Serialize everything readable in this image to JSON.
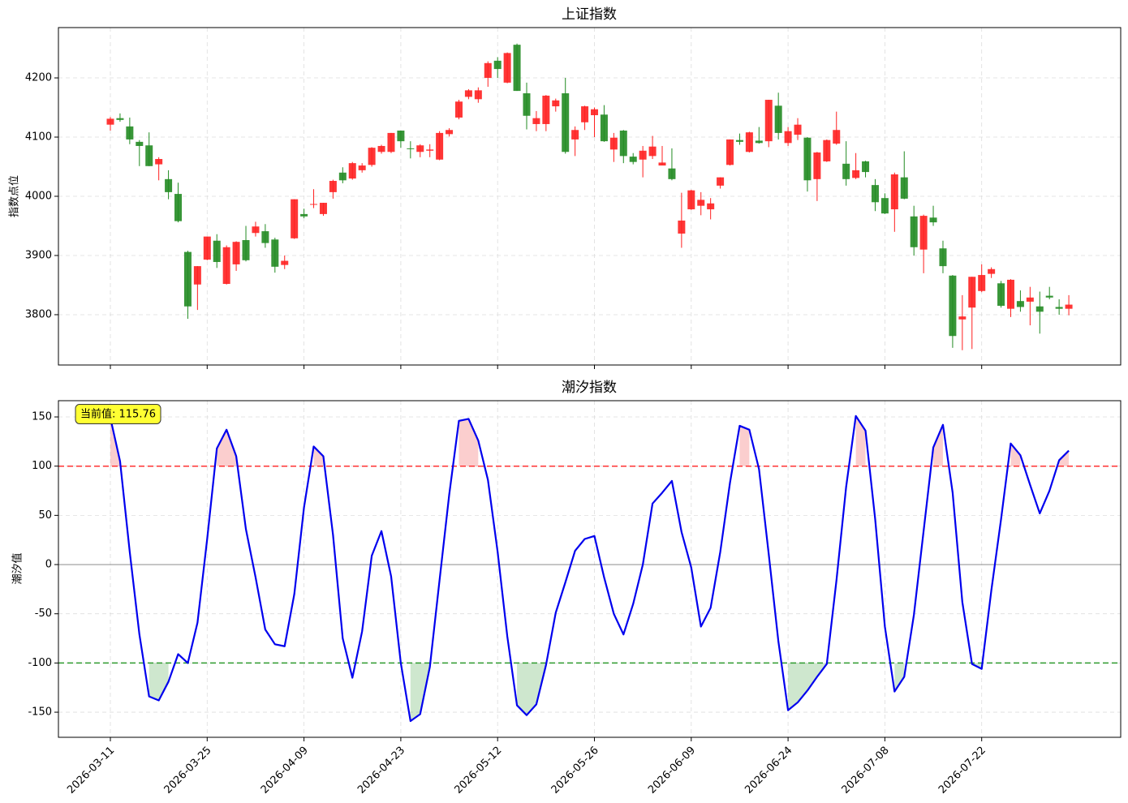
{
  "chart_data": [
    {
      "type": "candlestick",
      "title": "上证指数",
      "y_label": "指数点位",
      "open": [
        4121,
        4132,
        4118,
        4092,
        4086,
        4054,
        4029,
        4004,
        3906,
        3851,
        3893,
        3925,
        3852,
        3885,
        3926,
        3938,
        3941,
        3927,
        3884,
        3929,
        3970,
        3986,
        3970,
        4007,
        4040,
        4030,
        4044,
        4053,
        4075,
        4075,
        4111,
        4081,
        4075,
        4077,
        4062,
        4105,
        4133,
        4168,
        4164,
        4200,
        4229,
        4192,
        4256,
        4174,
        4122,
        4122,
        4152,
        4174,
        4096,
        4125,
        4137,
        4138,
        4079,
        4111,
        4067,
        4062,
        4068,
        4052,
        4047,
        3937,
        3978,
        3984,
        3978,
        4018,
        4053,
        4095,
        4075,
        4094,
        4093,
        4153,
        4090,
        4104,
        4099,
        4029,
        4059,
        4089,
        4055,
        4031,
        4059,
        4019,
        3997,
        3978,
        4032,
        3966,
        3910,
        3964,
        3912,
        3866,
        3792,
        3812,
        3840,
        3869,
        3853,
        3810,
        3823,
        3822,
        3814,
        3832,
        3813,
        3810
      ],
      "high": [
        4134,
        4140,
        4133,
        4095,
        4108,
        4066,
        4044,
        4023,
        3908,
        3882,
        3932,
        3936,
        3917,
        3924,
        3950,
        3957,
        3953,
        3930,
        3900,
        3995,
        3979,
        4012,
        3989,
        4028,
        4049,
        4058,
        4056,
        4083,
        4087,
        4107,
        4111,
        4093,
        4088,
        4088,
        4110,
        4115,
        4163,
        4181,
        4184,
        4228,
        4235,
        4243,
        4258,
        4192,
        4144,
        4171,
        4165,
        4200,
        4118,
        4153,
        4150,
        4154,
        4107,
        4112,
        4073,
        4085,
        4102,
        4085,
        4081,
        4006,
        4011,
        4007,
        3997,
        4032,
        4096,
        4106,
        4109,
        4117,
        4163,
        4175,
        4117,
        4132,
        4100,
        4075,
        4096,
        4143,
        4093,
        4073,
        4060,
        4029,
        4005,
        4040,
        4076,
        3984,
        3969,
        3984,
        3925,
        3867,
        3833,
        3864,
        3885,
        3880,
        3857,
        3860,
        3841,
        3847,
        3839,
        3847,
        3826,
        3833
      ],
      "low": [
        4111,
        4126,
        4088,
        4051,
        4051,
        4027,
        3995,
        3956,
        3793,
        3808,
        3892,
        3879,
        3851,
        3874,
        3890,
        3932,
        3913,
        3871,
        3877,
        3928,
        3963,
        3980,
        3967,
        3996,
        4022,
        4028,
        4040,
        4050,
        4072,
        4073,
        4082,
        4064,
        4066,
        4066,
        4061,
        4101,
        4130,
        4164,
        4158,
        4185,
        4200,
        4191,
        4178,
        4113,
        4110,
        4110,
        4143,
        4072,
        4068,
        4112,
        4100,
        4092,
        4058,
        4056,
        4054,
        4032,
        4063,
        4053,
        4027,
        3913,
        3977,
        3968,
        3961,
        4013,
        4052,
        4087,
        4074,
        4089,
        4083,
        4096,
        4085,
        4095,
        4008,
        3992,
        4058,
        4087,
        4018,
        4029,
        4032,
        3975,
        3970,
        3940,
        3995,
        3900,
        3870,
        3950,
        3870,
        3744,
        3740,
        3742,
        3838,
        3862,
        3812,
        3796,
        3805,
        3782,
        3768,
        3826,
        3800,
        3799
      ],
      "close": [
        4131,
        4129,
        4096,
        4085,
        4051,
        4063,
        4007,
        3958,
        3814,
        3882,
        3932,
        3889,
        3914,
        3923,
        3892,
        3949,
        3921,
        3881,
        3891,
        3995,
        3966,
        3987,
        3989,
        4026,
        4027,
        4056,
        4052,
        4082,
        4085,
        4107,
        4093,
        4080,
        4086,
        4079,
        4107,
        4112,
        4160,
        4179,
        4179,
        4225,
        4215,
        4242,
        4178,
        4136,
        4132,
        4170,
        4162,
        4075,
        4112,
        4152,
        4147,
        4093,
        4099,
        4068,
        4058,
        4077,
        4084,
        4057,
        4029,
        3959,
        4010,
        3994,
        3988,
        4032,
        4096,
        4092,
        4108,
        4090,
        4163,
        4107,
        4110,
        4121,
        4027,
        4074,
        4095,
        4112,
        4029,
        4044,
        4041,
        3990,
        3971,
        4037,
        3996,
        3914,
        3967,
        3956,
        3882,
        3764,
        3797,
        3864,
        3867,
        3877,
        3815,
        3859,
        3813,
        3829,
        3805,
        3829,
        3810,
        3817
      ],
      "up_color": "#ff2020",
      "down_color": "#228b22",
      "ylim": [
        3715,
        4285
      ],
      "yticks": [
        3800,
        3900,
        4000,
        4100,
        4200
      ],
      "grid": true
    },
    {
      "type": "line",
      "title": "潮汐指数",
      "y_label": "潮汐值",
      "categories": [
        "2026-03-11",
        null,
        null,
        null,
        null,
        null,
        null,
        null,
        null,
        null,
        "2026-03-25",
        null,
        null,
        null,
        null,
        null,
        null,
        null,
        null,
        null,
        "2026-04-09",
        null,
        null,
        null,
        null,
        null,
        null,
        null,
        null,
        null,
        "2026-04-23",
        null,
        null,
        null,
        null,
        null,
        null,
        null,
        null,
        null,
        "2026-05-12",
        null,
        null,
        null,
        null,
        null,
        null,
        null,
        null,
        null,
        "2026-05-26",
        null,
        null,
        null,
        null,
        null,
        null,
        null,
        null,
        null,
        "2026-06-09",
        null,
        null,
        null,
        null,
        null,
        null,
        null,
        null,
        null,
        "2026-06-24",
        null,
        null,
        null,
        null,
        null,
        null,
        null,
        null,
        null,
        "2026-07-08",
        null,
        null,
        null,
        null,
        null,
        null,
        null,
        null,
        null,
        "2026-07-22",
        null,
        null,
        null,
        null,
        null,
        null,
        null,
        null,
        null
      ],
      "values": [
        149,
        105,
        13,
        -71,
        -134,
        -138,
        -119,
        -91,
        -100,
        -59,
        26,
        118,
        137,
        110,
        36,
        -13,
        -66,
        -81,
        -83,
        -30,
        58,
        120,
        110,
        30,
        -75,
        -115,
        -68,
        9,
        34,
        -12,
        -100,
        -159,
        -152,
        -104,
        -16,
        71,
        146,
        148,
        126,
        86,
        13,
        -73,
        -143,
        -153,
        -142,
        -102,
        -49,
        -18,
        14,
        26,
        29,
        -13,
        -50,
        -71,
        -40,
        0,
        62,
        73,
        85,
        33,
        -3,
        -63,
        -44,
        13,
        83,
        141,
        137,
        97,
        11,
        -78,
        -148,
        -140,
        -128,
        -114,
        -101,
        -16,
        79,
        151,
        136,
        46,
        -63,
        -129,
        -114,
        -51,
        34,
        119,
        142,
        73,
        -38,
        -101,
        -106,
        -26,
        46,
        123,
        111,
        81,
        52,
        75,
        106,
        115.76
      ],
      "color": "#0000ee",
      "thresholds": [
        {
          "value": 100,
          "color": "#ff3333",
          "fill": "rgba(240,80,80,0.28)"
        },
        {
          "value": -100,
          "color": "#2e9a2e",
          "fill": "rgba(60,160,60,0.25)"
        }
      ],
      "annotation": "当前值: 115.76",
      "ylim": [
        -175.5,
        166.5
      ],
      "yticks": [
        -150,
        -100,
        -50,
        0,
        50,
        100,
        150
      ],
      "grid": true
    }
  ]
}
